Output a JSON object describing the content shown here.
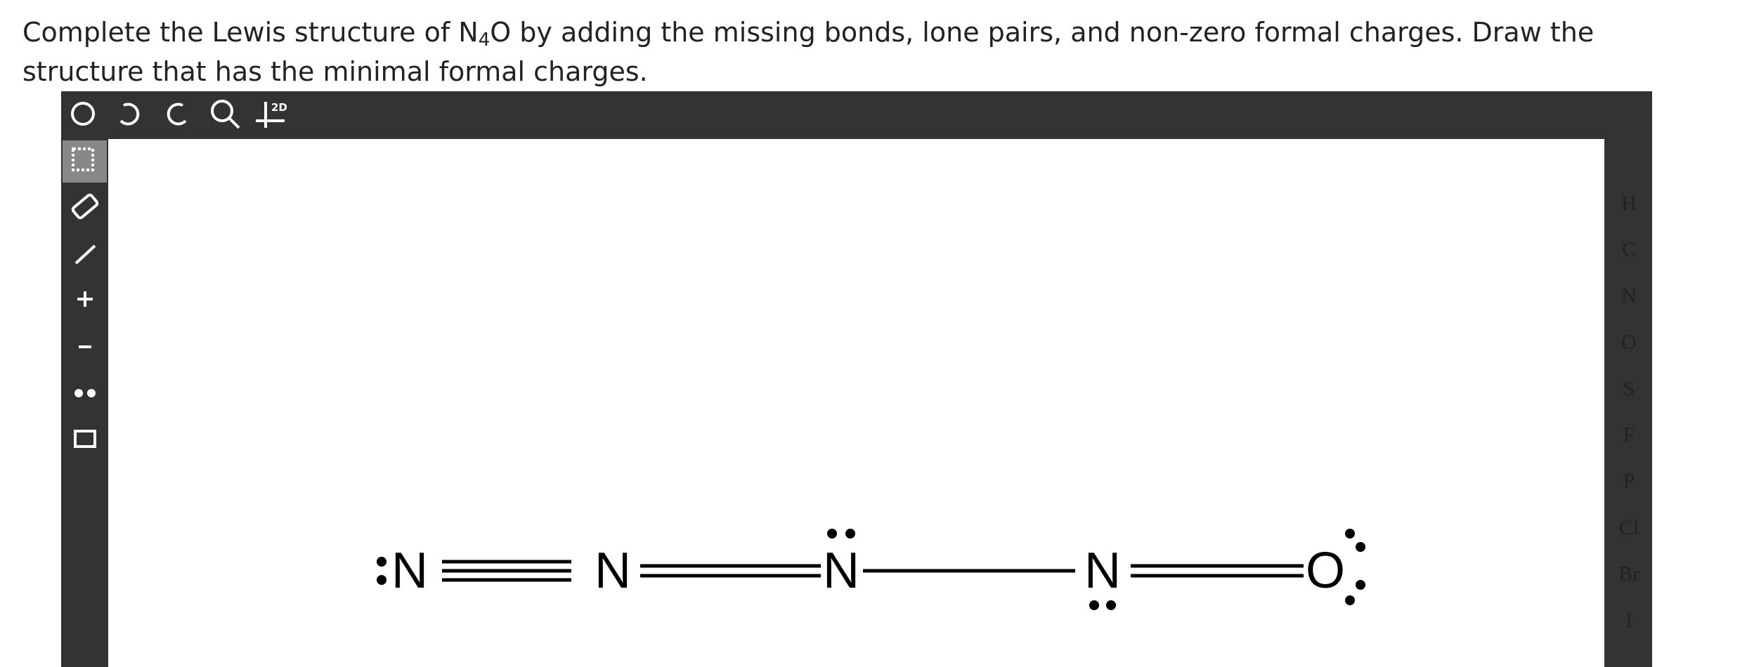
{
  "question": {
    "before": "Complete the Lewis structure of N",
    "subscript": "4",
    "after": "O by adding the missing bonds, lone pairs, and non-zero formal charges. Draw the structure that has the minimal formal charges."
  },
  "toolbar": {
    "mode_label": "2D"
  },
  "palette": [
    "H",
    "C",
    "N",
    "O",
    "S",
    "F",
    "P",
    "Cl",
    "Br",
    "I"
  ],
  "molecule": {
    "atoms": [
      "N",
      "N",
      "N",
      "N",
      "O"
    ]
  }
}
